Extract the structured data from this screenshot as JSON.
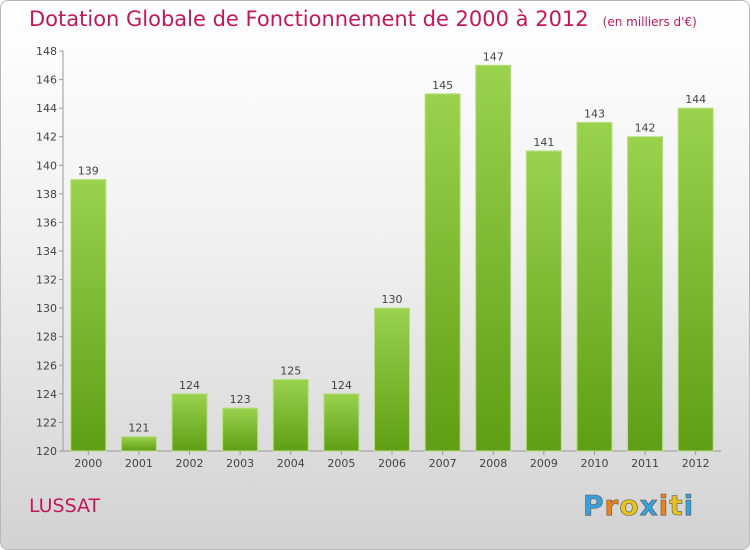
{
  "title": "Dotation Globale de Fonctionnement de 2000 à 2012",
  "unit_note": "(en milliers d'€)",
  "commune": "LUSSAT",
  "logo": {
    "letters": [
      "P",
      "r",
      "o",
      "x",
      "i",
      "t",
      "i"
    ],
    "colors": [
      "#3aa0dc",
      "#e8831e",
      "#e8c21e",
      "#3aa0dc",
      "#e8831e",
      "#e8c21e",
      "#3aa0dc"
    ]
  },
  "colors": {
    "title": "#c2185b",
    "bar_light": "#9ad24e",
    "bar_dark": "#5f9e14"
  },
  "chart_data": {
    "type": "bar",
    "categories": [
      "2000",
      "2001",
      "2002",
      "2003",
      "2004",
      "2005",
      "2006",
      "2007",
      "2008",
      "2009",
      "2010",
      "2011",
      "2012"
    ],
    "values": [
      139,
      121,
      124,
      123,
      125,
      124,
      130,
      145,
      147,
      141,
      143,
      142,
      144
    ],
    "ylim": [
      120,
      148
    ],
    "yticks": [
      120,
      122,
      124,
      126,
      128,
      130,
      132,
      134,
      136,
      138,
      140,
      142,
      144,
      146,
      148
    ],
    "grid": false,
    "data_labels": true
  }
}
